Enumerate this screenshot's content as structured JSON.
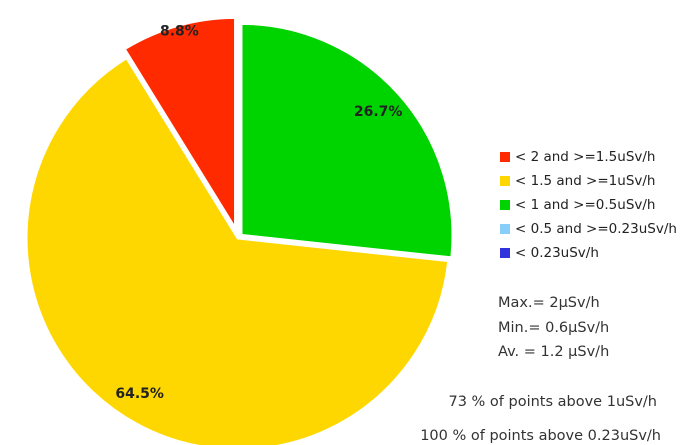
{
  "chart_data": {
    "type": "pie",
    "categories": [
      "< 2 and >=1.5uSv/h",
      "< 1.5 and >=1uSv/h",
      "< 1 and >=0.5uSv/h",
      "< 0.5 and >=0.23uSv/h",
      "< 0.23uSv/h"
    ],
    "values": [
      8.8,
      64.5,
      26.7,
      0,
      0
    ],
    "value_labels": [
      "8.8%",
      "64.5%",
      "26.7%",
      null,
      null
    ],
    "colors": [
      "#ff2a00",
      "#ffd700",
      "#00d400",
      "#87cefa",
      "#3333dd"
    ],
    "notes": [
      "Max.= 2µSv/h",
      "Min.= 0.6µSv/h",
      "Av. = 1.2 µSv/h",
      "73 % of points above 1uSv/h",
      "100 % of points above 0.23uSv/h"
    ],
    "legend": "right"
  }
}
